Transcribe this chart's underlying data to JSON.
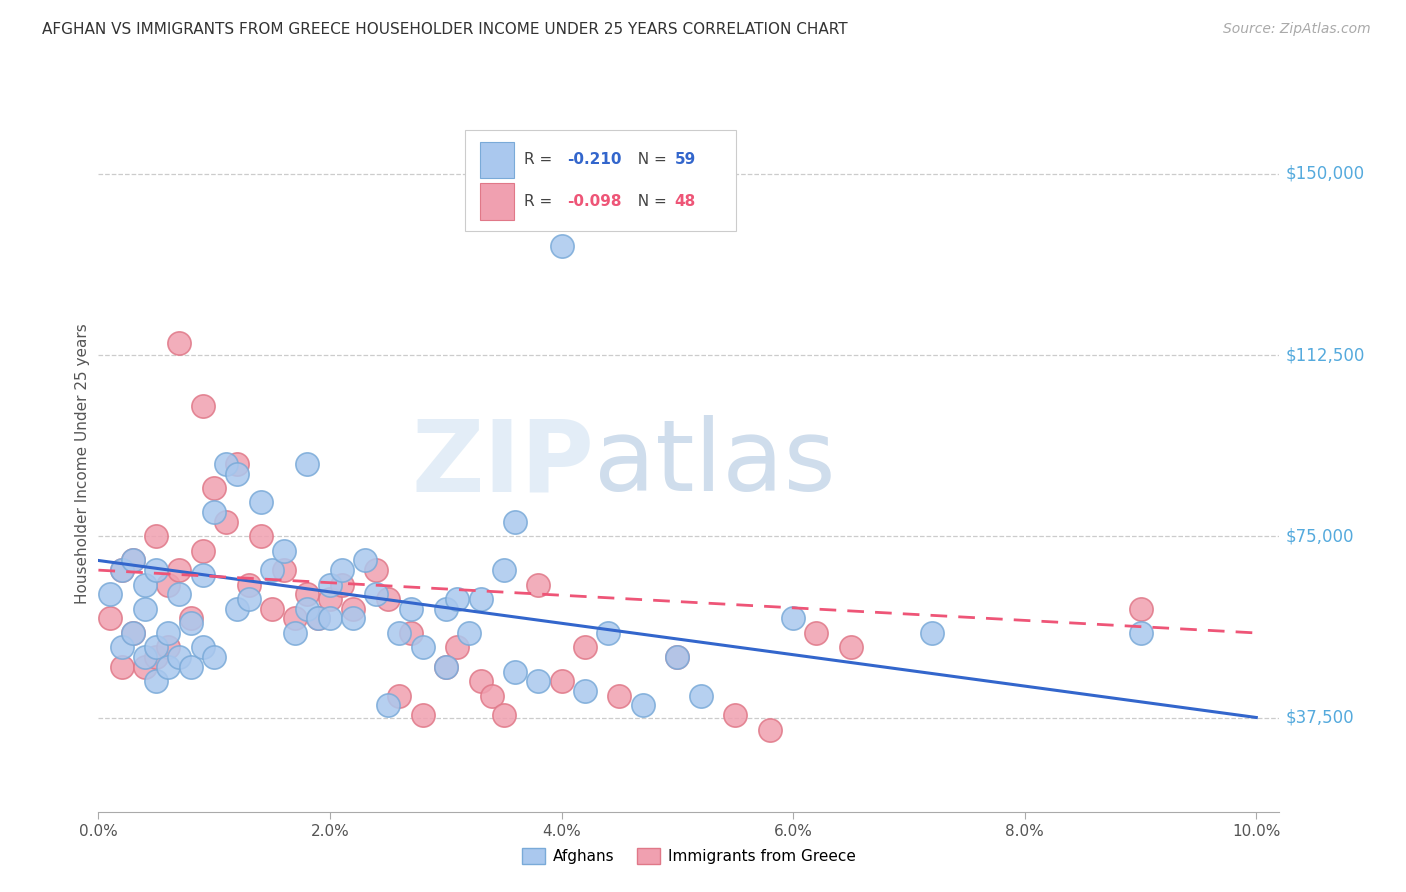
{
  "title": "AFGHAN VS IMMIGRANTS FROM GREECE HOUSEHOLDER INCOME UNDER 25 YEARS CORRELATION CHART",
  "source": "Source: ZipAtlas.com",
  "ylabel": "Householder Income Under 25 years",
  "xlabel_ticks": [
    "0.0%",
    "2.0%",
    "4.0%",
    "6.0%",
    "8.0%",
    "10.0%"
  ],
  "xlabel_vals": [
    0.0,
    0.02,
    0.04,
    0.06,
    0.08,
    0.1
  ],
  "ylabel_ticks": [
    "$37,500",
    "$75,000",
    "$112,500",
    "$150,000"
  ],
  "ylabel_vals": [
    37500,
    75000,
    112500,
    150000
  ],
  "xlim": [
    0.0,
    0.102
  ],
  "ylim": [
    18000,
    162000
  ],
  "afghans_color": "#aac8ee",
  "greece_color": "#f0a0b0",
  "afghans_edge": "#7aaad8",
  "greece_edge": "#e07888",
  "watermark_zip": "ZIP",
  "watermark_atlas": "atlas",
  "afghans_line_color": "#3366cc",
  "greece_line_color": "#ee5577",
  "afghans_x": [
    0.001,
    0.002,
    0.002,
    0.003,
    0.003,
    0.004,
    0.004,
    0.004,
    0.005,
    0.005,
    0.005,
    0.006,
    0.006,
    0.007,
    0.007,
    0.008,
    0.008,
    0.009,
    0.009,
    0.01,
    0.01,
    0.011,
    0.012,
    0.012,
    0.013,
    0.014,
    0.015,
    0.016,
    0.017,
    0.018,
    0.018,
    0.019,
    0.02,
    0.02,
    0.021,
    0.022,
    0.023,
    0.024,
    0.025,
    0.026,
    0.027,
    0.028,
    0.03,
    0.03,
    0.031,
    0.032,
    0.033,
    0.035,
    0.036,
    0.036,
    0.038,
    0.04,
    0.042,
    0.044,
    0.047,
    0.05,
    0.052,
    0.06,
    0.072,
    0.09
  ],
  "afghans_y": [
    63000,
    68000,
    52000,
    55000,
    70000,
    50000,
    60000,
    65000,
    45000,
    52000,
    68000,
    48000,
    55000,
    50000,
    63000,
    48000,
    57000,
    52000,
    67000,
    50000,
    80000,
    90000,
    88000,
    60000,
    62000,
    82000,
    68000,
    72000,
    55000,
    60000,
    90000,
    58000,
    65000,
    58000,
    68000,
    58000,
    70000,
    63000,
    40000,
    55000,
    60000,
    52000,
    48000,
    60000,
    62000,
    55000,
    62000,
    68000,
    47000,
    78000,
    45000,
    135000,
    43000,
    55000,
    40000,
    50000,
    42000,
    58000,
    55000,
    55000
  ],
  "greece_x": [
    0.001,
    0.002,
    0.002,
    0.003,
    0.003,
    0.004,
    0.005,
    0.005,
    0.006,
    0.006,
    0.007,
    0.008,
    0.009,
    0.01,
    0.011,
    0.012,
    0.013,
    0.014,
    0.015,
    0.016,
    0.017,
    0.018,
    0.019,
    0.02,
    0.021,
    0.022,
    0.024,
    0.025,
    0.026,
    0.027,
    0.028,
    0.03,
    0.031,
    0.033,
    0.034,
    0.035,
    0.038,
    0.04,
    0.042,
    0.045,
    0.05,
    0.055,
    0.058,
    0.062,
    0.065,
    0.09,
    0.007,
    0.009
  ],
  "greece_y": [
    58000,
    68000,
    48000,
    55000,
    70000,
    48000,
    50000,
    75000,
    65000,
    52000,
    68000,
    58000,
    72000,
    85000,
    78000,
    90000,
    65000,
    75000,
    60000,
    68000,
    58000,
    63000,
    58000,
    62000,
    65000,
    60000,
    68000,
    62000,
    42000,
    55000,
    38000,
    48000,
    52000,
    45000,
    42000,
    38000,
    65000,
    45000,
    52000,
    42000,
    50000,
    38000,
    35000,
    55000,
    52000,
    60000,
    115000,
    102000
  ],
  "afghans_line_x0": 0.0,
  "afghans_line_y0": 70000,
  "afghans_line_x1": 0.1,
  "afghans_line_y1": 37500,
  "greece_line_x0": 0.0,
  "greece_line_y0": 68000,
  "greece_line_x1": 0.1,
  "greece_line_y1": 55000
}
